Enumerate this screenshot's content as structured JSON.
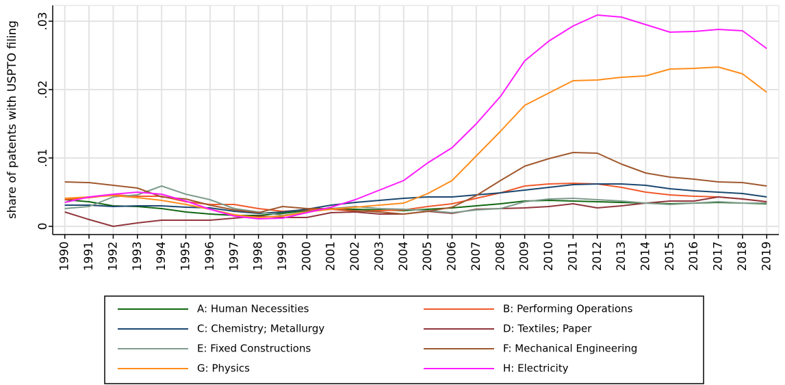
{
  "chart_data": {
    "type": "line",
    "y_label": "share of patents with USPTO filing",
    "x": [
      1990,
      1991,
      1992,
      1993,
      1994,
      1995,
      1996,
      1997,
      1998,
      1999,
      2000,
      2001,
      2002,
      2003,
      2004,
      2005,
      2006,
      2007,
      2008,
      2009,
      2010,
      2011,
      2012,
      2013,
      2014,
      2015,
      2016,
      2017,
      2018,
      2019
    ],
    "xlim": [
      1989.5,
      2019.5
    ],
    "xticks": [
      1990,
      1991,
      1992,
      1993,
      1994,
      1995,
      1996,
      1997,
      1998,
      1999,
      2000,
      2001,
      2002,
      2003,
      2004,
      2005,
      2006,
      2007,
      2008,
      2009,
      2010,
      2011,
      2012,
      2013,
      2014,
      2015,
      2016,
      2017,
      2018,
      2019
    ],
    "ylim": [
      -0.0012,
      0.0323
    ],
    "yticks": [
      0,
      {
        "value": 0.01,
        "label": ".01"
      },
      {
        "value": 0.02,
        "label": ".02"
      },
      {
        "value": 0.03,
        "label": ".03"
      }
    ],
    "grid": true,
    "series": [
      {
        "name": "A: Human Necessities",
        "color": "#116611",
        "values": [
          0.0039,
          0.0036,
          0.003,
          0.0029,
          0.0026,
          0.0021,
          0.0018,
          0.0016,
          0.0016,
          0.0019,
          0.0023,
          0.0025,
          0.0025,
          0.0024,
          0.0023,
          0.0025,
          0.0027,
          0.003,
          0.0033,
          0.0037,
          0.0038,
          0.0037,
          0.0036,
          0.0035,
          0.0034,
          0.0033,
          0.0034,
          0.0035,
          0.0034,
          0.0033
        ]
      },
      {
        "name": "B: Performing Operations",
        "color": "#f0582a",
        "values": [
          0.0039,
          0.0042,
          0.0046,
          0.0044,
          0.0044,
          0.0036,
          0.0032,
          0.0032,
          0.0026,
          0.0022,
          0.0024,
          0.0025,
          0.0022,
          0.0023,
          0.0024,
          0.0029,
          0.0033,
          0.0041,
          0.0049,
          0.0059,
          0.0062,
          0.0063,
          0.0062,
          0.0057,
          0.005,
          0.0046,
          0.0044,
          0.0043,
          0.004,
          0.0036
        ]
      },
      {
        "name": "C: Chemistry; Metallurgy",
        "color": "#1a476f",
        "values": [
          0.0031,
          0.0031,
          0.0029,
          0.003,
          0.003,
          0.0028,
          0.0027,
          0.0022,
          0.0019,
          0.0021,
          0.0025,
          0.0031,
          0.0035,
          0.0038,
          0.0041,
          0.0043,
          0.0043,
          0.0046,
          0.0049,
          0.0053,
          0.0057,
          0.0061,
          0.0062,
          0.0062,
          0.006,
          0.0055,
          0.0052,
          0.005,
          0.0048,
          0.0043
        ]
      },
      {
        "name": "D: Textiles; Paper",
        "color": "#90353b",
        "values": [
          0.0021,
          0.001,
          0.0,
          0.0005,
          0.0009,
          0.0009,
          0.0009,
          0.0012,
          0.0015,
          0.0013,
          0.0013,
          0.002,
          0.0021,
          0.0018,
          0.0018,
          0.0022,
          0.0019,
          0.0025,
          0.0026,
          0.0027,
          0.0029,
          0.0033,
          0.0027,
          0.003,
          0.0034,
          0.0037,
          0.0037,
          0.0043,
          0.004,
          0.0036
        ]
      },
      {
        "name": "E: Fixed Constructions",
        "color": "#7d9b8c",
        "values": [
          0.0026,
          0.0029,
          0.0043,
          0.0046,
          0.0059,
          0.0047,
          0.0039,
          0.0026,
          0.0021,
          0.0016,
          0.0021,
          0.0026,
          0.0029,
          0.0026,
          0.0025,
          0.0023,
          0.002,
          0.0024,
          0.0026,
          0.0036,
          0.004,
          0.0041,
          0.0039,
          0.0037,
          0.0034,
          0.0032,
          0.0034,
          0.0036,
          0.0034,
          0.0034
        ]
      },
      {
        "name": "F: Mechanical Engineering",
        "color": "#a0572d",
        "values": [
          0.0065,
          0.0064,
          0.006,
          0.0056,
          0.0043,
          0.004,
          0.0031,
          0.0024,
          0.002,
          0.0029,
          0.0026,
          0.0026,
          0.0023,
          0.0021,
          0.0018,
          0.0022,
          0.0028,
          0.0045,
          0.0067,
          0.0088,
          0.0099,
          0.0108,
          0.0107,
          0.0091,
          0.0078,
          0.0072,
          0.0069,
          0.0065,
          0.0064,
          0.0059
        ]
      },
      {
        "name": "G: Physics",
        "color": "#ff8c1a",
        "values": [
          0.0041,
          0.0043,
          0.0045,
          0.0042,
          0.0038,
          0.0032,
          0.0025,
          0.0017,
          0.0013,
          0.0015,
          0.0021,
          0.0025,
          0.0028,
          0.0031,
          0.0034,
          0.0048,
          0.0067,
          0.0103,
          0.0139,
          0.0177,
          0.0195,
          0.0213,
          0.0214,
          0.0218,
          0.022,
          0.023,
          0.0231,
          0.0233,
          0.0223,
          0.0196
        ]
      },
      {
        "name": "H: Electricity",
        "color": "#ff1aff",
        "values": [
          0.0035,
          0.0043,
          0.0047,
          0.005,
          0.0047,
          0.0037,
          0.0025,
          0.0015,
          0.0011,
          0.0012,
          0.002,
          0.0028,
          0.0039,
          0.0053,
          0.0067,
          0.0093,
          0.0115,
          0.015,
          0.019,
          0.0242,
          0.0271,
          0.0293,
          0.0309,
          0.0306,
          0.0295,
          0.0284,
          0.0285,
          0.0288,
          0.0286,
          0.026
        ]
      }
    ]
  }
}
